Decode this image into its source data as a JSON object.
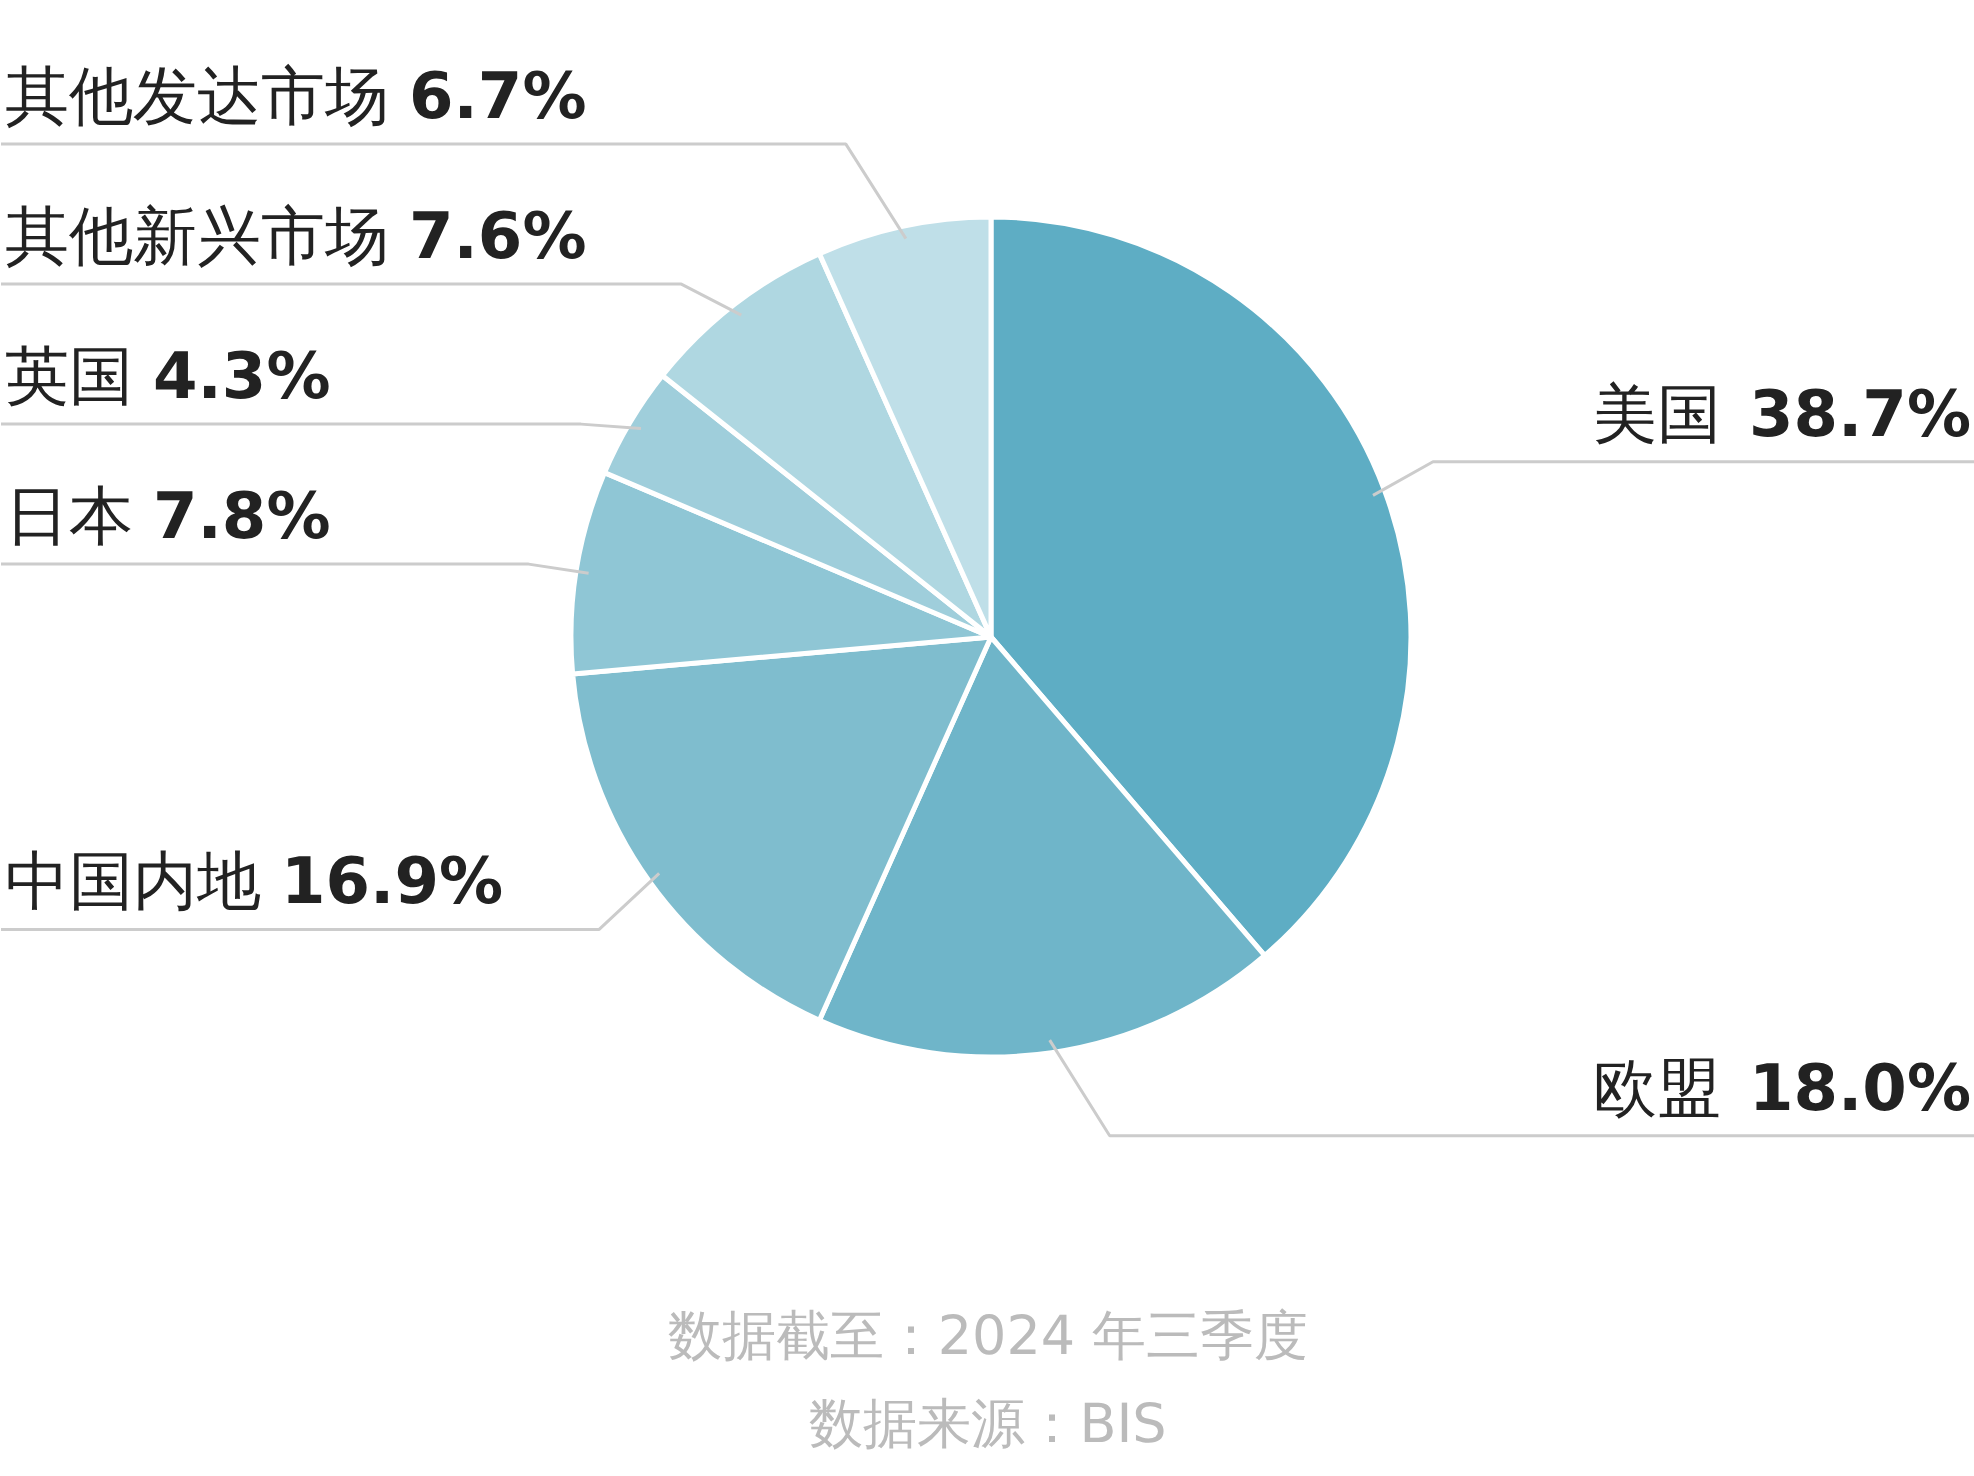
{
  "chart_data": {
    "type": "pie",
    "categories": [
      "美国",
      "欧盟",
      "中国内地",
      "日本",
      "英国",
      "其他新兴市场",
      "其他发达市场"
    ],
    "values": [
      38.7,
      18.0,
      16.9,
      7.8,
      4.3,
      7.6,
      6.7
    ],
    "value_labels": [
      "38.7%",
      "18.0%",
      "16.9%",
      "7.8%",
      "4.3%",
      "7.6%",
      "6.7%"
    ],
    "colors": [
      "#5eadc4",
      "#6fb5c9",
      "#7fbdce",
      "#8fc6d5",
      "#9fcedb",
      "#afd7e1",
      "#bfdfe8"
    ],
    "annotations": [
      "数据截至：2024 年三季度",
      "数据来源：BIS"
    ]
  }
}
